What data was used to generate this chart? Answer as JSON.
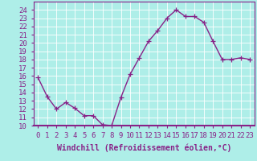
{
  "x": [
    0,
    1,
    2,
    3,
    4,
    5,
    6,
    7,
    8,
    9,
    10,
    11,
    12,
    13,
    14,
    15,
    16,
    17,
    18,
    19,
    20,
    21,
    22,
    23
  ],
  "y": [
    15.8,
    13.5,
    12.0,
    12.8,
    12.1,
    11.2,
    11.2,
    10.1,
    10.0,
    13.4,
    16.2,
    18.2,
    20.2,
    21.5,
    23.0,
    24.0,
    23.2,
    23.2,
    22.5,
    20.2,
    18.0,
    18.0,
    18.2,
    18.0
  ],
  "line_color": "#882288",
  "marker": "+",
  "marker_size": 4,
  "background_color": "#AEEEE8",
  "grid_color": "#ffffff",
  "xlabel": "Windchill (Refroidissement éolien,°C)",
  "xlabel_fontsize": 7,
  "tick_fontsize": 6.5,
  "ylim": [
    10,
    25
  ],
  "xlim": [
    -0.5,
    23.5
  ],
  "yticks": [
    10,
    11,
    12,
    13,
    14,
    15,
    16,
    17,
    18,
    19,
    20,
    21,
    22,
    23,
    24
  ],
  "xticks": [
    0,
    1,
    2,
    3,
    4,
    5,
    6,
    7,
    8,
    9,
    10,
    11,
    12,
    13,
    14,
    15,
    16,
    17,
    18,
    19,
    20,
    21,
    22,
    23
  ],
  "spine_color": "#882288",
  "line_width": 1.0,
  "fig_width": 3.2,
  "fig_height": 2.0,
  "dpi": 100
}
